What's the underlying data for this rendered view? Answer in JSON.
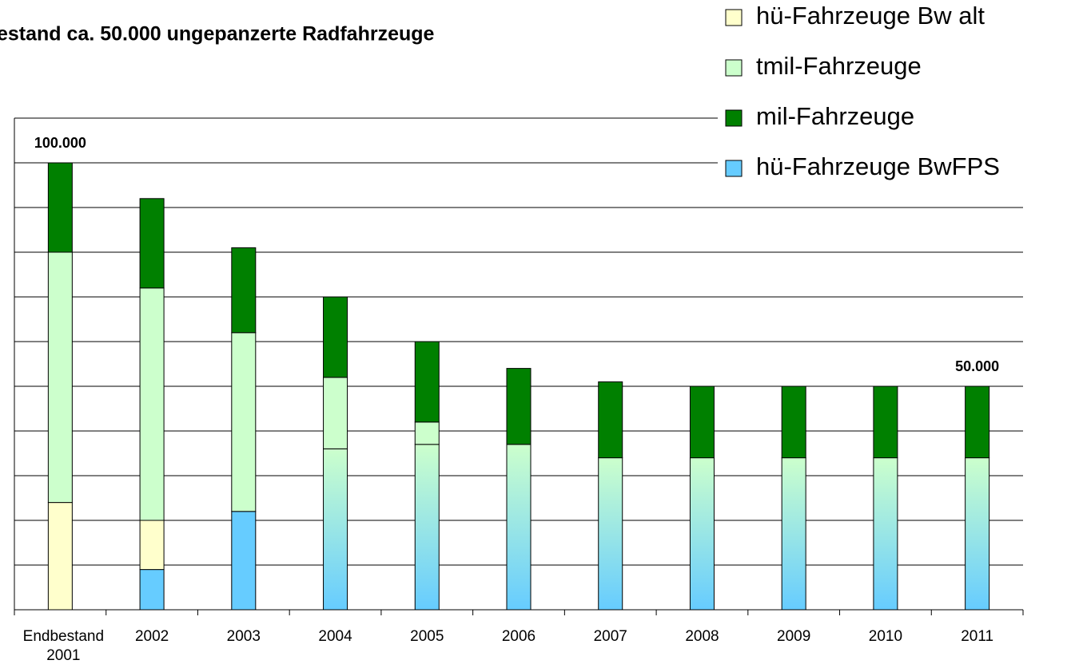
{
  "chart_data": {
    "type": "stacked_bar",
    "title": "estand ca. 50.000 ungepanzerte Radfahrzeuge",
    "annotations": [
      "100.000",
      "50.000"
    ],
    "categories": [
      "Endbestand 2001",
      "2002",
      "2003",
      "2004",
      "2005",
      "2006",
      "2007",
      "2008",
      "2009",
      "2010",
      "2011"
    ],
    "series": [
      {
        "name": "hü-Fahrzeuge Bw alt",
        "color": "#ffffcc",
        "values": [
          24000,
          11000,
          0,
          0,
          0,
          0,
          0,
          0,
          0,
          0,
          0
        ]
      },
      {
        "name": "tmil-Fahrzeuge",
        "color": "#ccffcc",
        "values": [
          56000,
          52000,
          40000,
          16000,
          5000,
          0,
          0,
          0,
          0,
          0,
          0
        ]
      },
      {
        "name": "mil-Fahrzeuge",
        "color": "#008000",
        "values": [
          20000,
          20000,
          19000,
          18000,
          18000,
          17000,
          17000,
          16000,
          16000,
          16000,
          16000
        ]
      },
      {
        "name": "hü-Fahrzeuge BwFPS",
        "color": "#66ccff",
        "values": [
          0,
          9000,
          22000,
          36000,
          37000,
          37000,
          34000,
          34000,
          34000,
          34000,
          34000
        ]
      }
    ],
    "ylim": [
      0,
      110000
    ],
    "yticks": [
      0,
      10000,
      20000,
      30000,
      40000,
      50000,
      60000,
      70000,
      80000,
      90000,
      100000,
      110000
    ],
    "grid": true,
    "legend": "top-right"
  }
}
